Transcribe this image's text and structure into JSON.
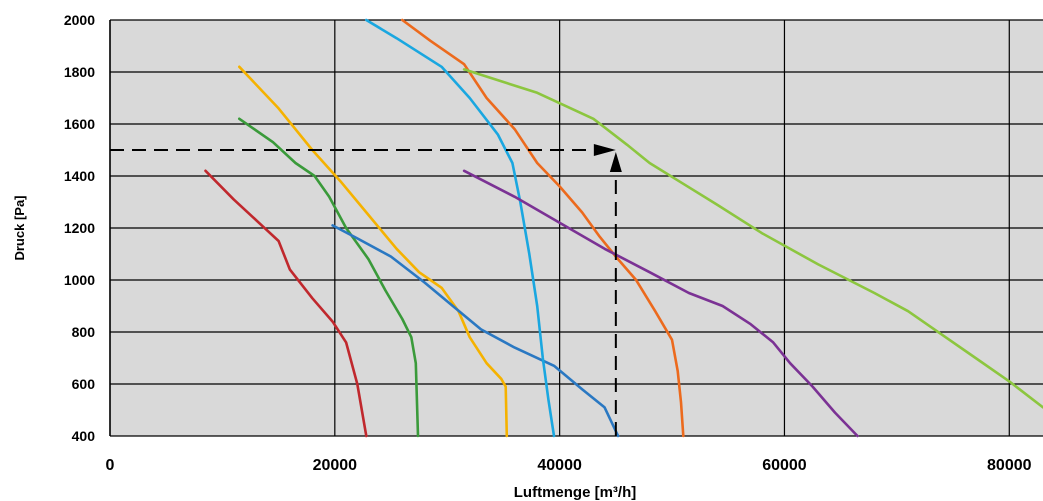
{
  "chart_data": {
    "type": "line",
    "xlabel": "Luftmenge [m³/h]",
    "ylabel": "Druck [Pa]",
    "xlim": [
      0,
      83000
    ],
    "ylim": [
      400,
      2000
    ],
    "x_ticks": [
      0,
      20000,
      40000,
      60000,
      80000
    ],
    "x_tick_labels": [
      "0",
      "20000",
      "40000",
      "60000",
      "80000"
    ],
    "y_ticks": [
      400,
      600,
      800,
      1000,
      1200,
      1400,
      1600,
      1800,
      2000
    ],
    "y_tick_labels": [
      "400",
      "600",
      "800",
      "1000",
      "1200",
      "1400",
      "1600",
      "1800",
      "2000"
    ],
    "grid": true,
    "background": "#d9d9d9",
    "series": [
      {
        "color": "#c0282d",
        "points": [
          [
            8500,
            1420
          ],
          [
            11000,
            1310
          ],
          [
            13500,
            1210
          ],
          [
            15000,
            1150
          ],
          [
            16000,
            1040
          ],
          [
            18000,
            930
          ],
          [
            19800,
            840
          ],
          [
            21000,
            760
          ],
          [
            22000,
            600
          ],
          [
            22800,
            400
          ]
        ]
      },
      {
        "color": "#3a9a3a",
        "points": [
          [
            11500,
            1620
          ],
          [
            14500,
            1530
          ],
          [
            16500,
            1450
          ],
          [
            18200,
            1400
          ],
          [
            19500,
            1320
          ],
          [
            21000,
            1200
          ],
          [
            23000,
            1080
          ],
          [
            24500,
            960
          ],
          [
            26000,
            850
          ],
          [
            26800,
            780
          ],
          [
            27200,
            680
          ],
          [
            27400,
            400
          ]
        ]
      },
      {
        "color": "#f5b200",
        "points": [
          [
            11500,
            1820
          ],
          [
            15000,
            1660
          ],
          [
            18000,
            1500
          ],
          [
            20500,
            1380
          ],
          [
            23000,
            1250
          ],
          [
            25500,
            1120
          ],
          [
            27500,
            1030
          ],
          [
            29500,
            970
          ],
          [
            31000,
            880
          ],
          [
            32000,
            780
          ],
          [
            33500,
            680
          ],
          [
            34800,
            620
          ],
          [
            35200,
            590
          ],
          [
            35300,
            400
          ]
        ]
      },
      {
        "color": "#2a78c2",
        "points": [
          [
            19800,
            1210
          ],
          [
            22000,
            1160
          ],
          [
            25000,
            1090
          ],
          [
            28000,
            990
          ],
          [
            30500,
            900
          ],
          [
            33000,
            810
          ],
          [
            36000,
            740
          ],
          [
            39500,
            670
          ],
          [
            42000,
            580
          ],
          [
            44000,
            510
          ],
          [
            45200,
            400
          ]
        ]
      },
      {
        "color": "#1aa7e0",
        "points": [
          [
            22800,
            2000
          ],
          [
            25500,
            1930
          ],
          [
            29500,
            1820
          ],
          [
            32000,
            1700
          ],
          [
            34500,
            1560
          ],
          [
            35800,
            1450
          ],
          [
            36500,
            1300
          ],
          [
            37300,
            1100
          ],
          [
            38000,
            900
          ],
          [
            38500,
            700
          ],
          [
            39000,
            540
          ],
          [
            39500,
            400
          ]
        ]
      },
      {
        "color": "#ec6a1d",
        "points": [
          [
            26000,
            2000
          ],
          [
            28500,
            1920
          ],
          [
            31500,
            1830
          ],
          [
            33500,
            1700
          ],
          [
            36000,
            1580
          ],
          [
            38000,
            1450
          ],
          [
            40000,
            1360
          ],
          [
            42000,
            1260
          ],
          [
            43500,
            1170
          ],
          [
            45000,
            1090
          ],
          [
            46800,
            1000
          ],
          [
            48500,
            880
          ],
          [
            50000,
            770
          ],
          [
            50500,
            650
          ],
          [
            50800,
            530
          ],
          [
            51000,
            400
          ]
        ]
      },
      {
        "color": "#7b3294",
        "points": [
          [
            31500,
            1420
          ],
          [
            36000,
            1320
          ],
          [
            40000,
            1220
          ],
          [
            44000,
            1120
          ],
          [
            48000,
            1030
          ],
          [
            51500,
            950
          ],
          [
            54500,
            900
          ],
          [
            57000,
            830
          ],
          [
            59000,
            760
          ],
          [
            60500,
            680
          ],
          [
            62500,
            590
          ],
          [
            64500,
            490
          ],
          [
            66500,
            400
          ]
        ]
      },
      {
        "color": "#8cc63f",
        "points": [
          [
            31500,
            1810
          ],
          [
            38000,
            1720
          ],
          [
            43000,
            1620
          ],
          [
            46000,
            1520
          ],
          [
            48000,
            1450
          ],
          [
            51000,
            1370
          ],
          [
            54000,
            1290
          ],
          [
            58000,
            1180
          ],
          [
            63000,
            1060
          ],
          [
            68000,
            950
          ],
          [
            71000,
            880
          ],
          [
            74000,
            790
          ],
          [
            77000,
            700
          ],
          [
            80000,
            610
          ],
          [
            83000,
            510
          ]
        ]
      }
    ],
    "operating_point": {
      "x": 45000,
      "y": 1500
    }
  }
}
